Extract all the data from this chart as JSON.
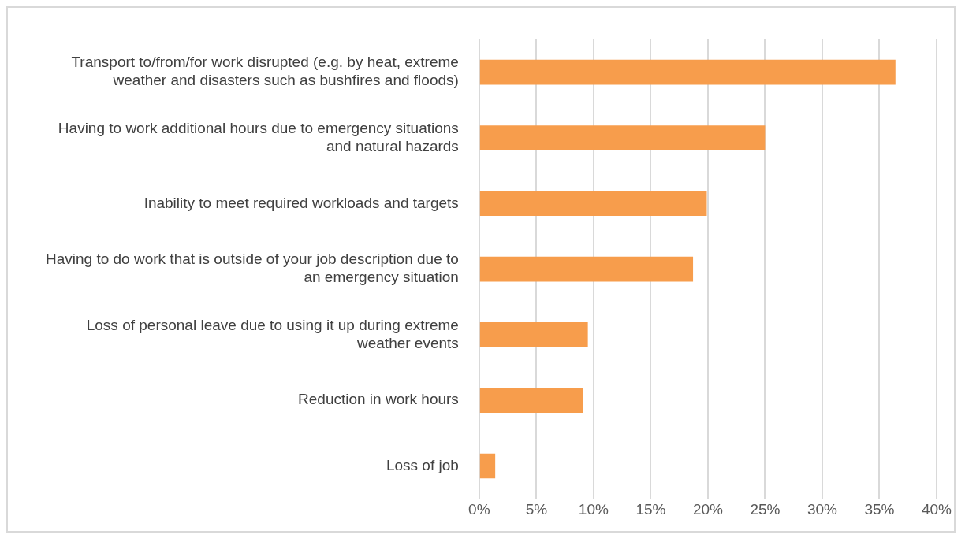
{
  "chart_data": {
    "type": "bar",
    "orientation": "horizontal",
    "categories": [
      "Transport to/from/for work disrupted (e.g. by heat, extreme weather and disasters such as bushfires and floods)",
      "Having to work additional hours due to emergency situations and natural hazards",
      "Inability to meet required workloads and targets",
      "Having to do work that is outside of your job description due to an emergency situation",
      "Loss of personal leave due to using it up during extreme weather events",
      "Reduction in work hours",
      "Loss of job"
    ],
    "values": [
      36.4,
      25.0,
      19.9,
      18.7,
      9.5,
      9.1,
      1.4
    ],
    "color": "#f79d4c",
    "xlim": [
      0,
      40
    ],
    "xticks": [
      {
        "value": 0,
        "label": "0%"
      },
      {
        "value": 5,
        "label": "5%"
      },
      {
        "value": 10,
        "label": "10%"
      },
      {
        "value": 15,
        "label": "15%"
      },
      {
        "value": 20,
        "label": "20%"
      },
      {
        "value": 25,
        "label": "25%"
      },
      {
        "value": 30,
        "label": "30%"
      },
      {
        "value": 35,
        "label": "35%"
      },
      {
        "value": 40,
        "label": "40%"
      }
    ],
    "grid": "x",
    "legend": false
  }
}
